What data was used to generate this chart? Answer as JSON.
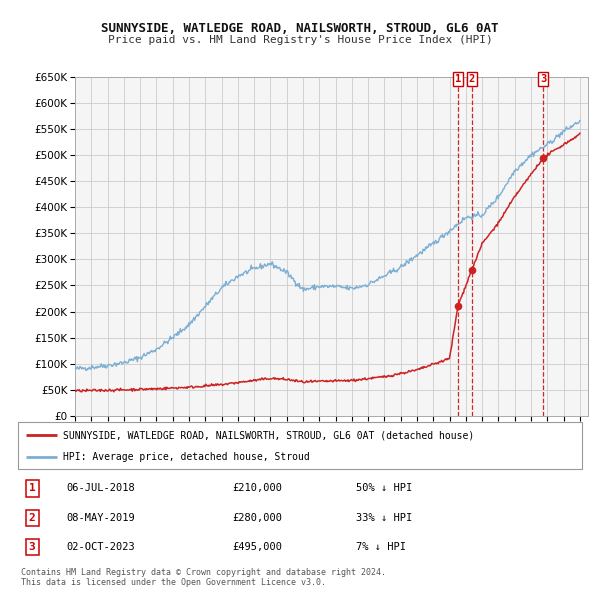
{
  "title": "SUNNYSIDE, WATLEDGE ROAD, NAILSWORTH, STROUD, GL6 0AT",
  "subtitle": "Price paid vs. HM Land Registry's House Price Index (HPI)",
  "ylim": [
    0,
    650000
  ],
  "yticks": [
    0,
    50000,
    100000,
    150000,
    200000,
    250000,
    300000,
    350000,
    400000,
    450000,
    500000,
    550000,
    600000,
    650000
  ],
  "xlim_start": 1995.0,
  "xlim_end": 2026.5,
  "hpi_color": "#7bafd4",
  "price_color": "#cc2222",
  "background_color": "#ffffff",
  "grid_color": "#cccccc",
  "legend_label_red": "SUNNYSIDE, WATLEDGE ROAD, NAILSWORTH, STROUD, GL6 0AT (detached house)",
  "legend_label_blue": "HPI: Average price, detached house, Stroud",
  "transactions": [
    {
      "num": 1,
      "date": "06-JUL-2018",
      "price": 210000,
      "pct": "50% ↓ HPI",
      "x": 2018.51
    },
    {
      "num": 2,
      "date": "08-MAY-2019",
      "price": 280000,
      "pct": "33% ↓ HPI",
      "x": 2019.36
    },
    {
      "num": 3,
      "date": "02-OCT-2023",
      "price": 495000,
      "pct": "7% ↓ HPI",
      "x": 2023.75
    }
  ],
  "footer": "Contains HM Land Registry data © Crown copyright and database right 2024.\nThis data is licensed under the Open Government Licence v3.0."
}
